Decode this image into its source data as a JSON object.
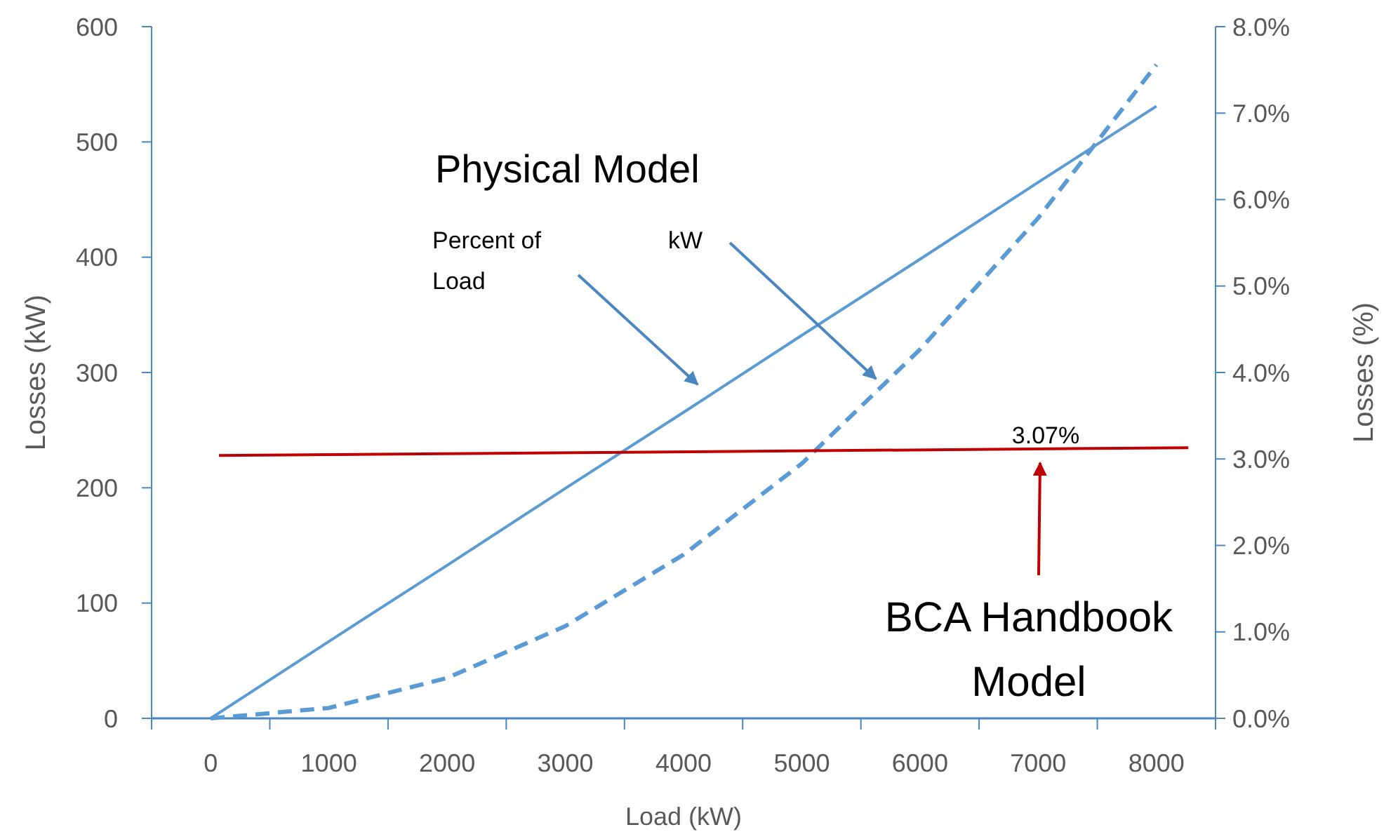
{
  "chart_data": {
    "type": "line",
    "xlabel": "Load (kW)",
    "ylabel": "Losses (kW)",
    "y2label": "Losses (%)",
    "xlim": [
      -500,
      8500
    ],
    "xticks": [
      {
        "value": -500,
        "label": null
      },
      0,
      {
        "value": 500,
        "label": null
      },
      1000,
      {
        "value": 1500,
        "label": null
      },
      2000,
      {
        "value": 2500,
        "label": null
      },
      3000,
      {
        "value": 3500,
        "label": null
      },
      4000,
      {
        "value": 4500,
        "label": null
      },
      5000,
      {
        "value": 5500,
        "label": null
      },
      6000,
      {
        "value": 6500,
        "label": null
      },
      7000,
      {
        "value": 7500,
        "label": null
      },
      8000,
      {
        "value": 8500,
        "label": null
      }
    ],
    "ylim": [
      0,
      600
    ],
    "yticks": [
      0,
      100,
      200,
      300,
      400,
      500,
      600
    ],
    "y2lim": [
      0,
      8
    ],
    "y2ticks": [
      {
        "value": 0,
        "label": "0.0%"
      },
      {
        "value": 1,
        "label": "1.0%"
      },
      {
        "value": 2,
        "label": "2.0%"
      },
      {
        "value": 3,
        "label": "3.0%"
      },
      {
        "value": 4,
        "label": "4.0%"
      },
      {
        "value": 5,
        "label": "5.0%"
      },
      {
        "value": 6,
        "label": "6.0%"
      },
      {
        "value": 7,
        "label": "7.0%"
      },
      {
        "value": 8,
        "label": "8.0%"
      }
    ],
    "series": [
      {
        "axis": "y2",
        "color": "#5b9bd5",
        "line_style": "solid",
        "x": [
          0,
          1000,
          2000,
          3000,
          4000,
          5000,
          6000,
          7000,
          8000
        ],
        "values": [
          0,
          0.89,
          1.77,
          2.66,
          3.54,
          4.43,
          5.31,
          6.2,
          7.08
        ]
      },
      {
        "axis": "y",
        "color": "#5b9bd5",
        "line_style": "dashed",
        "x": [
          0,
          1000,
          2000,
          3000,
          4000,
          5000,
          6000,
          7000,
          8000
        ],
        "values": [
          0,
          9,
          35,
          80,
          142,
          221,
          320,
          434,
          567
        ]
      },
      {
        "axis": "y2",
        "color": "#c00000",
        "line_style": "solid",
        "x": [
          70,
          8270
        ],
        "values": [
          3.04,
          3.13
        ]
      }
    ],
    "annotations": [
      "Physical Model",
      "Percent of Load",
      "kW",
      "3.07%",
      "BCA Handbook Model"
    ]
  }
}
